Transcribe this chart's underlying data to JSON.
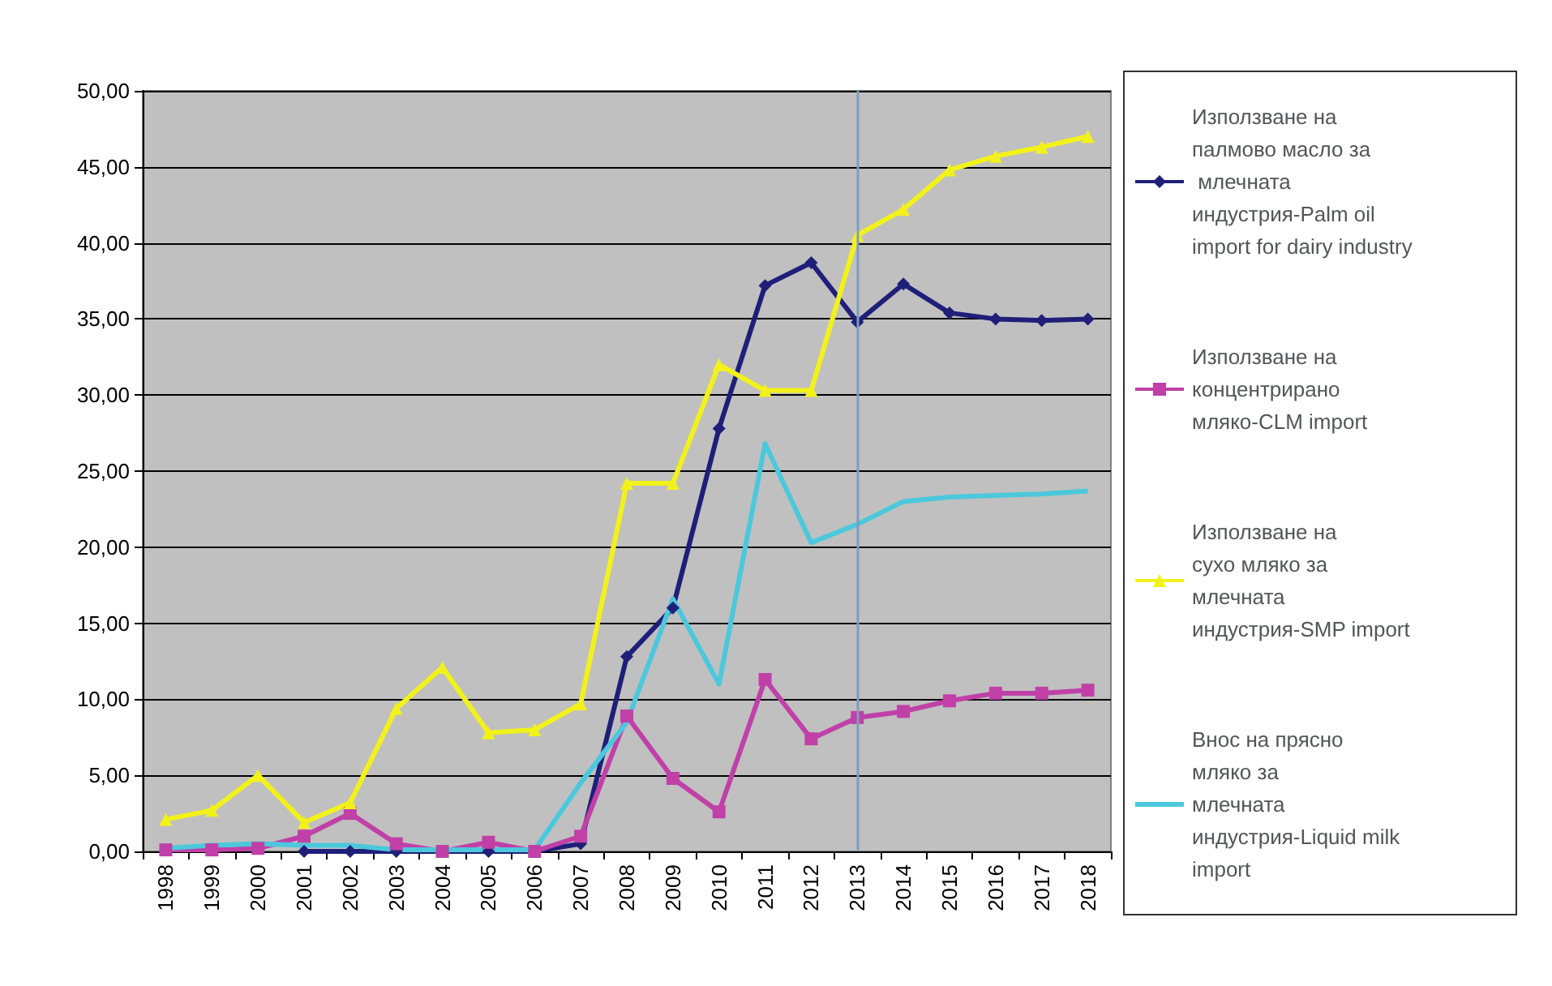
{
  "chart_data": {
    "type": "line",
    "categories": [
      "1998",
      "1999",
      "2000",
      "2001",
      "2002",
      "2003",
      "2004",
      "2005",
      "2006",
      "2007",
      "2008",
      "2009",
      "2010",
      "2011",
      "2012",
      "2013",
      "2014",
      "2015",
      "2016",
      "2017",
      "2018"
    ],
    "series": [
      {
        "name": "Използване на палмово масло за млечната индустрия-Palm oil import for dairy industry",
        "color": "#1f1f7a",
        "marker": "diamond",
        "values": [
          null,
          null,
          null,
          0,
          0,
          0,
          0,
          0,
          0,
          0.5,
          12.8,
          16,
          27.8,
          37.2,
          38.7,
          34.8,
          37.3,
          35.4,
          35,
          34.9,
          35
        ]
      },
      {
        "name": "Използване на концентрирано мляко-CLM import",
        "color": "#c040a8",
        "marker": "square",
        "values": [
          0.1,
          0.1,
          0.2,
          1,
          2.5,
          0.5,
          0,
          0.6,
          0,
          1,
          8.9,
          4.8,
          2.6,
          11.3,
          7.4,
          8.8,
          9.2,
          9.9,
          10.4,
          10.4,
          10.6
        ]
      },
      {
        "name": "Използване на сухо мляко за млечната индустрия-SMP import",
        "color": "#f2f21a",
        "marker": "triangle",
        "values": [
          2.1,
          2.7,
          5,
          1.9,
          3.2,
          9.4,
          12.1,
          7.8,
          8,
          9.7,
          24.2,
          24.2,
          32,
          30.3,
          30.3,
          40.5,
          42.2,
          44.8,
          45.7,
          46.3,
          47
        ]
      },
      {
        "name": "Внос на прясно мляко за млечната индустрия-Liquid milk import",
        "color": "#4cc8dc",
        "marker": "none",
        "values": [
          0.2,
          0.4,
          0.5,
          0.4,
          0.4,
          0.1,
          0.1,
          0.1,
          0.1,
          4.5,
          8.5,
          16.6,
          11,
          26.8,
          20.3,
          21.5,
          23,
          23.3,
          23.4,
          23.5,
          23.7
        ]
      }
    ],
    "ylim": [
      0,
      50
    ],
    "yticks": [
      {
        "value": 0,
        "label": "0,00"
      },
      {
        "value": 5,
        "label": "5,00"
      },
      {
        "value": 10,
        "label": "10,00"
      },
      {
        "value": 15,
        "label": "15,00"
      },
      {
        "value": 20,
        "label": "20,00"
      },
      {
        "value": 25,
        "label": "25,00"
      },
      {
        "value": 30,
        "label": "30,00"
      },
      {
        "value": 35,
        "label": "35,00"
      },
      {
        "value": 40,
        "label": "40,00"
      },
      {
        "value": 45,
        "label": "45,00"
      },
      {
        "value": 50,
        "label": "50,00"
      }
    ],
    "ref_lines": [
      {
        "axis": "x",
        "value": "2013",
        "color": "#7f9cc0"
      }
    ],
    "grid": "y",
    "legend": "right",
    "line_style": "solid"
  }
}
